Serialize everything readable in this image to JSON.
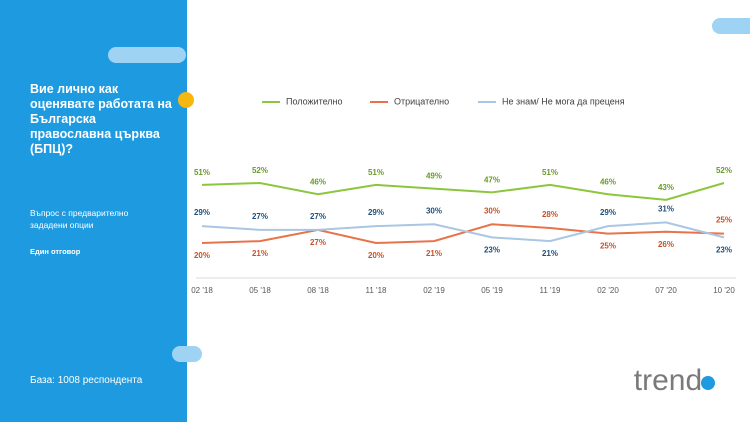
{
  "question": "Вие лично как оценявате работата на Българска православна църква (БПЦ)?",
  "note": "Въпрос с предварително зададени опции",
  "answer_type": "Един отговор",
  "base": "База: 1008 респондента",
  "logo": "trend",
  "chart_data": {
    "type": "line",
    "categories": [
      "02 '18",
      "05 '18",
      "08 '18",
      "11 '18",
      "02 '19",
      "05 '19",
      "11 '19",
      "02 '20",
      "07 '20",
      "10 '20"
    ],
    "series": [
      {
        "name": "Положително",
        "color": "#8cc63e",
        "values": [
          51,
          52,
          46,
          51,
          49,
          47,
          51,
          46,
          43,
          52
        ],
        "value_labels": [
          "51%",
          "52%",
          "46%",
          "51%",
          "49%",
          "47%",
          "51%",
          "46%",
          "43%",
          "52%"
        ],
        "label_color": "#6a9a2a"
      },
      {
        "name": "Отрицателно",
        "color": "#e8734a",
        "values": [
          20,
          21,
          27,
          20,
          21,
          30,
          28,
          25,
          26,
          25
        ],
        "value_labels": [
          "20%",
          "21%",
          "27%",
          "20%",
          "21%",
          "30%",
          "28%",
          "25%",
          "26%",
          "25%"
        ],
        "label_color": "#c4512a"
      },
      {
        "name": "Не знам/ Не мога да преценя",
        "color": "#a9c6e3",
        "values": [
          29,
          27,
          27,
          29,
          30,
          23,
          21,
          29,
          31,
          23
        ],
        "value_labels": [
          "29%",
          "27%",
          "27%",
          "29%",
          "30%",
          "23%",
          "21%",
          "29%",
          "31%",
          "23%"
        ],
        "label_color": "#1f4e79"
      }
    ]
  }
}
